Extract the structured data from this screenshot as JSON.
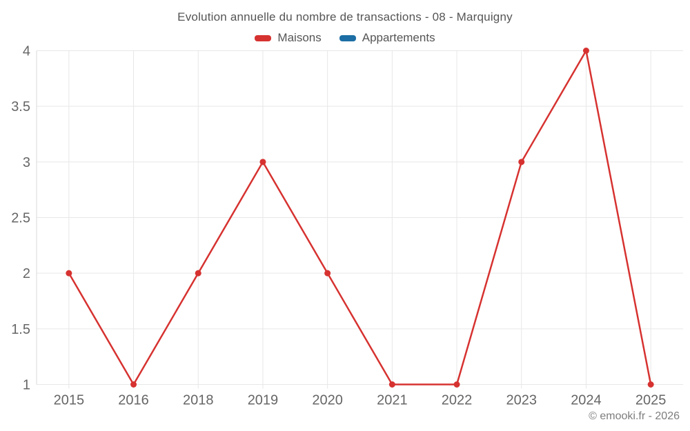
{
  "chart_data": {
    "type": "line",
    "title": "Evolution annuelle du nombre de transactions - 08 - Marquigny",
    "categories": [
      "2015",
      "2016",
      "2018",
      "2019",
      "2020",
      "2021",
      "2022",
      "2023",
      "2024",
      "2025"
    ],
    "series": [
      {
        "name": "Maisons",
        "color": "#d63230",
        "values": [
          2,
          1,
          2,
          3,
          2,
          1,
          1,
          3,
          4,
          1
        ]
      },
      {
        "name": "Appartements",
        "color": "#1c6ea4",
        "values": []
      }
    ],
    "ylim": [
      1,
      4
    ],
    "yticks": [
      1,
      1.5,
      2,
      2.5,
      3,
      3.5,
      4
    ],
    "grid": true,
    "legend_position": "top",
    "colors": {
      "grid": "#e7e7e7",
      "axis": "#dadada",
      "tick_text": "#666666"
    }
  },
  "footer": {
    "copyright": "© emooki.fr - 2026"
  }
}
